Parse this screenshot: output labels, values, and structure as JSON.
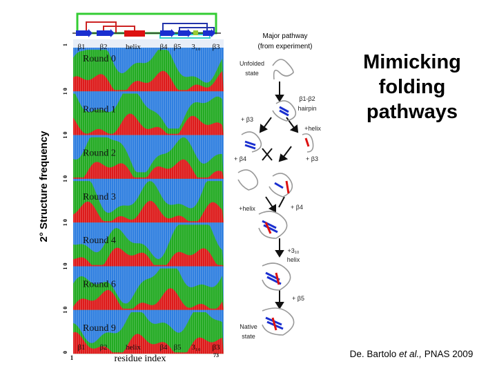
{
  "title_lines": [
    "Mimicking",
    "folding",
    "pathways"
  ],
  "citation": {
    "authors": "De. Bartolo",
    "etal": "et al.,",
    "journal": "PNAS 2009"
  },
  "figure": {
    "y_axis_label": "2° Structure frequency",
    "x_axis_label": "residue index",
    "x_start": "1",
    "x_end": "73",
    "y_tick_labels": [
      "1",
      "1 0",
      "1 0",
      "1 0",
      "1 0",
      "1 0",
      "1 0",
      "0"
    ],
    "structure_labels": [
      "β1",
      "β2",
      "helix",
      "β4",
      "β5",
      "3₁₀",
      "β3"
    ],
    "panels": [
      "Round 0",
      "Round 1",
      "Round 2",
      "Round 3",
      "Round 4",
      "Round 6",
      "Round 9"
    ]
  },
  "pathway": {
    "heading": [
      "Major pathway",
      "(from experiment)"
    ],
    "unfolded": [
      "Unfolded",
      "state"
    ],
    "hairpin": [
      "β1-β2",
      "hairpin"
    ],
    "plus_b3_a": "+ β3",
    "plus_helix_a": "+helix",
    "plus_b4_a": "+ β4",
    "plus_b3_b": "+ β3",
    "plus_helix_b": "+helix",
    "plus_b4_b": "+ β4",
    "plus_310": [
      "+3₁₀",
      "helix"
    ],
    "plus_b5": "+ β5",
    "native": [
      "Native",
      "state"
    ]
  }
}
